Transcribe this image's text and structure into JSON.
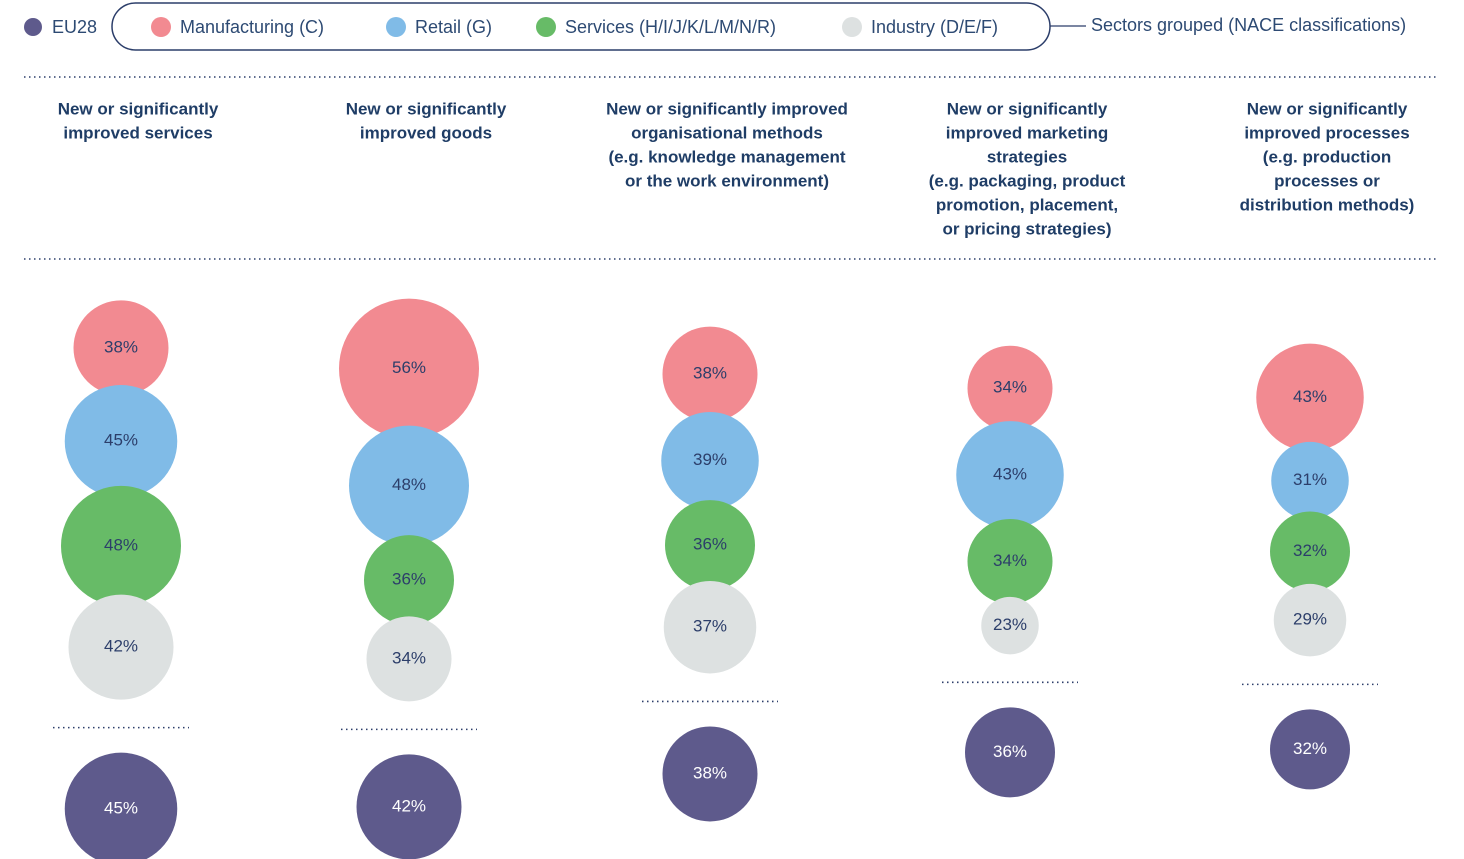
{
  "chart_data": {
    "type": "bubble",
    "legend_title": "Sectors grouped (NACE classifications)",
    "categories": [
      [
        "New or significantly",
        "improved services"
      ],
      [
        "New or significantly",
        "improved goods"
      ],
      [
        "New or significantly improved",
        "organisational methods",
        "(e.g. knowledge management",
        "or the work environment)"
      ],
      [
        "New or significantly",
        "improved marketing",
        "strategies",
        "(e.g. packaging, product",
        "promotion, placement,",
        "or pricing strategies)"
      ],
      [
        "New or significantly",
        "improved processes",
        "(e.g. production",
        "processes or",
        "distribution methods)"
      ]
    ],
    "series": [
      {
        "name": "Manufacturing (C)",
        "color": "#f28a91",
        "values": [
          38,
          56,
          38,
          34,
          43
        ],
        "value_labels": [
          "38%",
          "56%",
          "38%",
          "34%",
          "43%"
        ]
      },
      {
        "name": "Retail (G)",
        "color": "#80bbe7",
        "values": [
          45,
          48,
          39,
          43,
          31
        ],
        "value_labels": [
          "45%",
          "48%",
          "39%",
          "43%",
          "31%"
        ]
      },
      {
        "name": "Services (H/I/J/K/L/M/N/R)",
        "color": "#67bb67",
        "values": [
          48,
          36,
          36,
          34,
          32
        ],
        "value_labels": [
          "48%",
          "36%",
          "36%",
          "34%",
          "32%"
        ]
      },
      {
        "name": "Industry (D/E/F)",
        "color": "#dde1e1",
        "values": [
          42,
          34,
          37,
          23,
          29
        ],
        "value_labels": [
          "42%",
          "34%",
          "37%",
          "23%",
          "29%"
        ]
      },
      {
        "name": "EU28",
        "color": "#5e5a8c",
        "values": [
          45,
          42,
          38,
          36,
          32
        ],
        "value_labels": [
          "45%",
          "42%",
          "38%",
          "36%",
          "32%"
        ]
      }
    ]
  }
}
